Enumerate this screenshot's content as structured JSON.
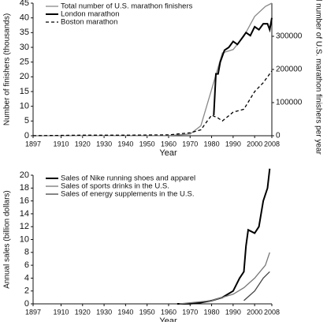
{
  "chart_data": [
    {
      "type": "line",
      "x_label": "Year",
      "y_label": "Number of finishers (thousands)",
      "y2_label": "Total number of U.S. marathon finishers per year",
      "xlim": [
        1897,
        2008
      ],
      "xticks": [
        1897,
        1910,
        1920,
        1930,
        1940,
        1950,
        1960,
        1970,
        1980,
        1990,
        2000,
        2008
      ],
      "ylim": [
        0,
        45
      ],
      "yticks": [
        0,
        5,
        10,
        15,
        20,
        25,
        30,
        35,
        40,
        45
      ],
      "y2lim": [
        0,
        400000
      ],
      "y2ticks": [
        0,
        100000,
        200000,
        300000
      ],
      "series": [
        {
          "name": "Total number of U.S. marathon finishers",
          "color": "#888888",
          "line_style": "solid",
          "axis": "y2",
          "x": [
            1897,
            1960,
            1970,
            1975,
            1980,
            1985,
            1990,
            1995,
            2000,
            2005,
            2008
          ],
          "values": [
            100,
            800,
            5000,
            30000,
            140000,
            250000,
            260000,
            300000,
            360000,
            390000,
            400000
          ]
        },
        {
          "name": "London marathon",
          "color": "#000000",
          "line_style": "solid",
          "x": [
            1981,
            1982,
            1983,
            1984,
            1985,
            1986,
            1988,
            1990,
            1992,
            1994,
            1996,
            1998,
            2000,
            2002,
            2004,
            2006,
            2007,
            2008
          ],
          "values": [
            7,
            21,
            21,
            25,
            27,
            29,
            30,
            32,
            31,
            33,
            35,
            34,
            37,
            36,
            38,
            38,
            36,
            40
          ]
        },
        {
          "name": "Boston marathon",
          "color": "#000000",
          "line_style": "dashed",
          "x": [
            1897,
            1920,
            1940,
            1960,
            1970,
            1975,
            1978,
            1980,
            1983,
            1985,
            1990,
            1995,
            2000,
            2004,
            2008
          ],
          "values": [
            0.02,
            0.2,
            0.2,
            0.3,
            1,
            2,
            5,
            7,
            6,
            5,
            8,
            9,
            15,
            18,
            22
          ]
        }
      ]
    },
    {
      "type": "line",
      "x_label": "Year",
      "y_label": "Annual sales (billion dollars)",
      "xlim": [
        1897,
        2008
      ],
      "xticks": [
        1897,
        1910,
        1920,
        1930,
        1940,
        1950,
        1960,
        1970,
        1980,
        1990,
        2000,
        2008
      ],
      "ylim": [
        0,
        20
      ],
      "yticks": [
        0,
        2,
        4,
        6,
        8,
        10,
        12,
        14,
        16,
        18,
        20
      ],
      "series": [
        {
          "name": "Sales of Nike running shoes and apparel",
          "color": "#000000",
          "line_style": "solid",
          "x": [
            1964,
            1970,
            1975,
            1980,
            1985,
            1990,
            1993,
            1995,
            1996,
            1997,
            2000,
            2002,
            2004,
            2006,
            2007
          ],
          "values": [
            0,
            0.01,
            0.2,
            0.5,
            1,
            2,
            4,
            5,
            9,
            11.5,
            11,
            12,
            16,
            18,
            21
          ]
        },
        {
          "name": "Sales of sports drinks in the U.S.",
          "color": "#777777",
          "line_style": "solid",
          "x": [
            1965,
            1980,
            1990,
            1995,
            2000,
            2005,
            2007
          ],
          "values": [
            0,
            0.5,
            1.5,
            2.5,
            4,
            6,
            8
          ]
        },
        {
          "name": "Sales of energy supplements in the U.S.",
          "color": "#444444",
          "line_style": "solid",
          "x": [
            1995,
            2000,
            2004,
            2007
          ],
          "values": [
            0.5,
            2,
            4,
            5
          ]
        }
      ]
    }
  ]
}
